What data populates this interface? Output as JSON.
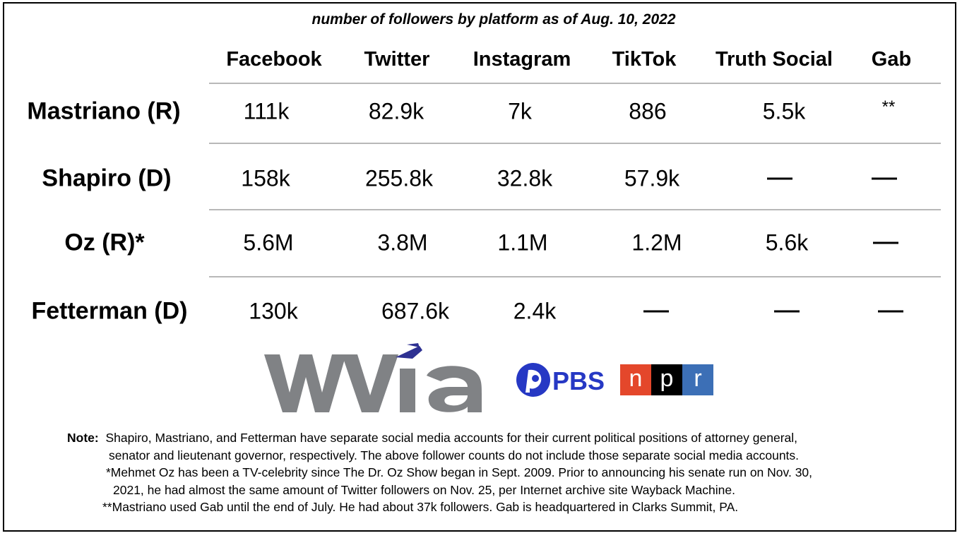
{
  "chart_data": {
    "type": "table",
    "subtitle": "number of followers by platform as of Aug. 10, 2022",
    "columns": [
      "Facebook",
      "Twitter",
      "Instagram",
      "TikTok",
      "Truth Social",
      "Gab"
    ],
    "rows": [
      {
        "name": "Mastriano (R)",
        "values": [
          "111k",
          "82.9k",
          "7k",
          "886",
          "5.5k",
          "**"
        ]
      },
      {
        "name": "Shapiro (D)",
        "values": [
          "158k",
          "255.8k",
          "32.8k",
          "57.9k",
          "—",
          "—"
        ]
      },
      {
        "name": "Oz (R)*",
        "values": [
          "5.6M",
          "3.8M",
          "1.1M",
          "1.2M",
          "5.6k",
          "—"
        ]
      },
      {
        "name": "Fetterman (D)",
        "values": [
          "130k",
          "687.6k",
          "2.4k",
          "—",
          "—",
          "—"
        ]
      }
    ]
  },
  "logos": {
    "wvia": {
      "text": "wvia",
      "color": "#808285",
      "accent": "#2e3192"
    },
    "pbs": {
      "text": "PBS",
      "color": "#2638c4"
    },
    "npr": {
      "letters": [
        "n",
        "p",
        "r"
      ],
      "colors": [
        "#e4472b",
        "#000000",
        "#3c6fb6"
      ]
    }
  },
  "notes": {
    "label": "Note:",
    "line1": "Shapiro, Mastriano, and Fetterman have separate social media accounts for their current political positions of attorney general,",
    "line2": "senator and lieutenant governor, respectively. The above follower counts do not include those separate social media accounts.",
    "line3": "*Mehmet Oz has been a TV-celebrity since The Dr. Oz Show began in Sept. 2009. Prior to announcing his senate run on Nov. 30,",
    "line4": "2021, he had almost the same amount of Twitter followers on Nov. 25, per Internet archive site Wayback Machine.",
    "line5": "**Mastriano used Gab until the end of July. He had about 37k followers. Gab is headquartered in Clarks Summit, PA."
  }
}
